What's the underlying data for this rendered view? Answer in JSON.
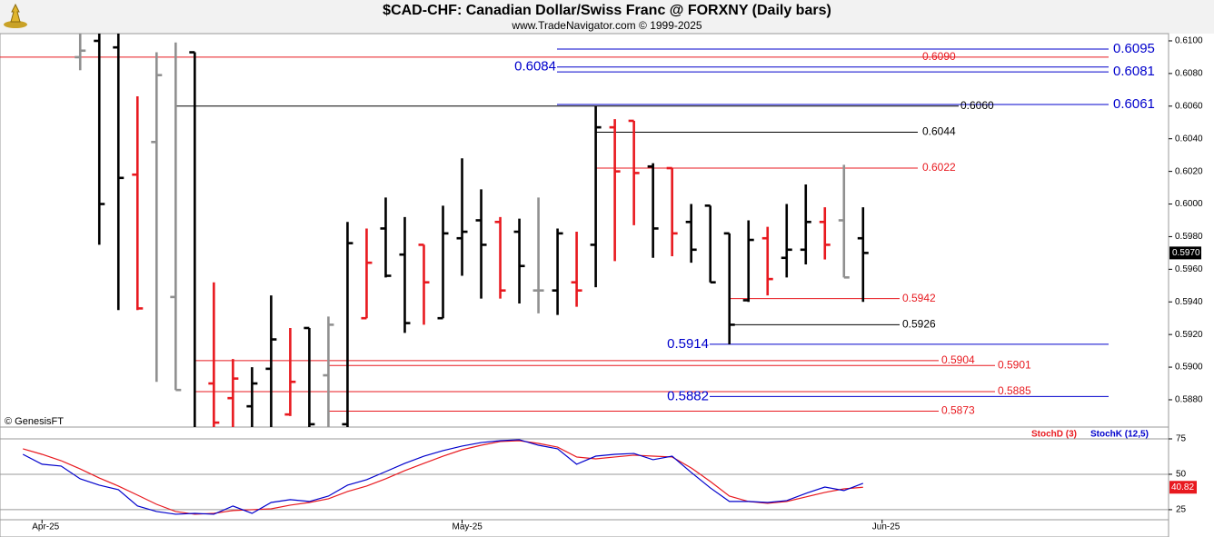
{
  "chart_data": [
    {
      "type": "ohlc",
      "title": "$CAD-CHF:  Canadian Dollar/Swiss Franc @ FORXNY  (Daily bars)",
      "subtitle": "www.TradeNavigator.com © 1999-2025",
      "credit": "© GenesisFT",
      "x": [
        0,
        1,
        2,
        3,
        4,
        5,
        6,
        7,
        8,
        9,
        10,
        11,
        12,
        13,
        14,
        15,
        16,
        17,
        18,
        19,
        20,
        21,
        22,
        23,
        24,
        25,
        26,
        27,
        28,
        29,
        30,
        31,
        32,
        33,
        34,
        35,
        36,
        37,
        38,
        39,
        40,
        41
      ],
      "open": [
        0.609,
        0.61,
        0.6096,
        0.6018,
        0.6038,
        0.5943,
        0.6093,
        0.589,
        0.5881,
        0.5876,
        0.5899,
        0.5871,
        0.5924,
        0.5895,
        0.5865,
        0.593,
        0.5985,
        0.5969,
        0.5975,
        0.593,
        0.5979,
        0.599,
        0.5989,
        0.5983,
        0.5947,
        0.5947,
        0.5952,
        0.5975,
        0.6047,
        0.6051,
        0.6023,
        0.6022,
        0.5989,
        0.5999,
        0.5982,
        0.5941,
        0.5979,
        0.5967,
        0.5972,
        0.5989,
        0.599,
        0.5979
      ],
      "high": [
        0.6105,
        0.6105,
        0.6105,
        0.6066,
        0.6093,
        0.6099,
        0.6093,
        0.5952,
        0.5905,
        0.59,
        0.5944,
        0.5924,
        0.5924,
        0.5931,
        0.5989,
        0.5985,
        0.6004,
        0.5992,
        0.5975,
        0.5999,
        0.6028,
        0.6009,
        0.5992,
        0.5991,
        0.6004,
        0.5985,
        0.5983,
        0.606,
        0.6052,
        0.6051,
        0.6025,
        0.6022,
        0.6,
        0.5999,
        0.5982,
        0.599,
        0.5986,
        0.6,
        0.6012,
        0.5998,
        0.6024,
        0.5998
      ],
      "low": [
        0.6082,
        0.5975,
        0.5935,
        0.5935,
        0.5891,
        0.5886,
        0.585,
        0.5855,
        0.5858,
        0.586,
        0.586,
        0.587,
        0.5858,
        0.586,
        0.5858,
        0.593,
        0.5955,
        0.5921,
        0.5926,
        0.593,
        0.5956,
        0.5942,
        0.5942,
        0.5939,
        0.5933,
        0.5932,
        0.5937,
        0.5949,
        0.5965,
        0.5987,
        0.5967,
        0.5968,
        0.5964,
        0.5952,
        0.5914,
        0.594,
        0.5944,
        0.5955,
        0.5963,
        0.5966,
        0.5955,
        0.594
      ],
      "close": [
        0.6094,
        0.6,
        0.6016,
        0.5936,
        0.6079,
        0.5886,
        0.5858,
        0.5866,
        0.5893,
        0.589,
        0.5917,
        0.5891,
        0.5865,
        0.5926,
        0.5976,
        0.5964,
        0.5956,
        0.5927,
        0.5952,
        0.5982,
        0.5983,
        0.5975,
        0.5947,
        0.5962,
        0.5947,
        0.5982,
        0.5947,
        0.6047,
        0.602,
        0.6019,
        0.5985,
        0.5982,
        0.5972,
        0.5952,
        0.5926,
        0.5978,
        0.5954,
        0.5972,
        0.5989,
        0.5975,
        0.5955,
        0.597
      ],
      "colors": [
        "#909090",
        "#000000",
        "#000000",
        "#e8191f",
        "#909090",
        "#909090",
        "#000000",
        "#e8191f",
        "#e8191f",
        "#000000",
        "#000000",
        "#e8191f",
        "#000000",
        "#909090",
        "#000000",
        "#e8191f",
        "#000000",
        "#000000",
        "#e8191f",
        "#000000",
        "#000000",
        "#000000",
        "#e8191f",
        "#000000",
        "#909090",
        "#000000",
        "#e8191f",
        "#000000",
        "#e8191f",
        "#e8191f",
        "#000000",
        "#e8191f",
        "#000000",
        "#000000",
        "#000000",
        "#000000",
        "#e8191f",
        "#000000",
        "#000000",
        "#e8191f",
        "#909090",
        "#000000"
      ],
      "xlim": [
        -4.2,
        57
      ],
      "xticks": [
        {
          "value": -2,
          "label": "Apr-25"
        },
        {
          "value": 20,
          "label": "May-25"
        },
        {
          "value": 42,
          "label": "Jun-25"
        }
      ],
      "ylim": [
        0.5863,
        0.6105
      ],
      "yticks": [
        {
          "value": 0.588,
          "label": "0.5880"
        },
        {
          "value": 0.59,
          "label": "0.5900"
        },
        {
          "value": 0.592,
          "label": "0.5920"
        },
        {
          "value": 0.594,
          "label": "0.5940"
        },
        {
          "value": 0.596,
          "label": "0.5960"
        },
        {
          "value": 0.598,
          "label": "0.5980"
        },
        {
          "value": 0.6,
          "label": "0.6000"
        },
        {
          "value": 0.602,
          "label": "0.6020"
        },
        {
          "value": 0.604,
          "label": "0.6040"
        },
        {
          "value": 0.606,
          "label": "0.6060"
        },
        {
          "value": 0.608,
          "label": "0.6080"
        },
        {
          "value": 0.61,
          "label": "0.6100"
        }
      ],
      "levels": [
        {
          "value": 0.6095,
          "label": "0.6095",
          "color": "#0000cc"
        },
        {
          "value": 0.609,
          "label": "0.6090",
          "color": "#e8191f"
        },
        {
          "value": 0.6084,
          "label": "0.6084",
          "color": "#0000cc"
        },
        {
          "value": 0.6081,
          "label": "0.6081",
          "color": "#0000cc"
        },
        {
          "value": 0.6061,
          "label": "0.6061",
          "color": "#0000cc"
        },
        {
          "value": 0.606,
          "label": "0.6060",
          "color": "#000000"
        },
        {
          "value": 0.6044,
          "label": "0.6044",
          "color": "#000000"
        },
        {
          "value": 0.6022,
          "label": "0.6022",
          "color": "#e8191f"
        },
        {
          "value": 0.5942,
          "label": "0.5942",
          "color": "#e8191f"
        },
        {
          "value": 0.5926,
          "label": "0.5926",
          "color": "#000000"
        },
        {
          "value": 0.5914,
          "label": "0.5914",
          "color": "#0000cc"
        },
        {
          "value": 0.5904,
          "label": "0.5904",
          "color": "#e8191f"
        },
        {
          "value": 0.5901,
          "label": "0.5901",
          "color": "#e8191f"
        },
        {
          "value": 0.5885,
          "label": "0.5885",
          "color": "#e8191f"
        },
        {
          "value": 0.5882,
          "label": "0.5882",
          "color": "#0000cc"
        },
        {
          "value": 0.5873,
          "label": "0.5873",
          "color": "#e8191f"
        }
      ],
      "last_price": {
        "value": 0.597,
        "label": "0.5970"
      }
    },
    {
      "type": "line",
      "x": [
        -3,
        -2,
        -1,
        0,
        1,
        2,
        3,
        4,
        5,
        6,
        7,
        8,
        9,
        10,
        11,
        12,
        13,
        14,
        15,
        16,
        17,
        18,
        19,
        20,
        21,
        22,
        23,
        24,
        25,
        26,
        27,
        28,
        29,
        30,
        31,
        32,
        33,
        34,
        35,
        36,
        37,
        38,
        39,
        40,
        41
      ],
      "series": [
        {
          "name": "StochD (3)",
          "color": "#e8191f",
          "values": [
            68,
            64.1,
            59.6,
            53.8,
            47.4,
            41.7,
            35.3,
            28.8,
            23.7,
            21.8,
            22.4,
            24.4,
            25,
            25.6,
            28.2,
            30.1,
            32.7,
            37.8,
            41.7,
            46.8,
            52.6,
            57.7,
            62.8,
            67.3,
            70.5,
            73.1,
            73.7,
            71.8,
            69.2,
            62.2,
            60.9,
            62.2,
            63.5,
            62.8,
            62.2,
            54.5,
            44.9,
            34.6,
            30.8,
            29.5,
            30.8,
            34,
            37.2,
            39.7,
            40.82
          ]
        },
        {
          "name": "StochK (12,5)",
          "color": "#0000cc",
          "values": [
            64.1,
            57.1,
            55.8,
            46.8,
            42.3,
            39.1,
            27.6,
            23.7,
            21.8,
            22.4,
            21.8,
            27.6,
            22.4,
            30.1,
            32.1,
            30.8,
            34.6,
            42.3,
            46.2,
            51.9,
            57.7,
            62.8,
            66.7,
            69.9,
            72.4,
            73.7,
            74.4,
            70.5,
            68,
            57.1,
            62.8,
            64.1,
            64.7,
            60.3,
            62.8,
            51.3,
            40.4,
            30.8,
            30.8,
            30.1,
            31.4,
            36.5,
            41,
            38.5,
            43.6
          ]
        }
      ],
      "xlim": [
        -4.2,
        57
      ],
      "ylim": [
        17.9,
        75
      ],
      "yticks": [
        25,
        50,
        75
      ]
    }
  ]
}
